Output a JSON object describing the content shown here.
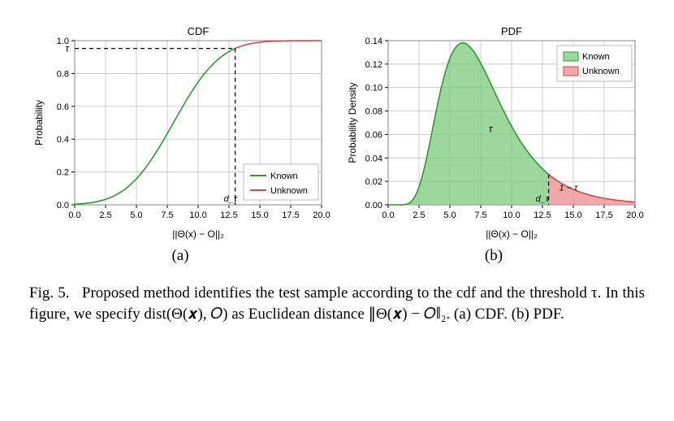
{
  "figure_number": "Fig. 5.",
  "caption_text": "Proposed method identifies the test sample according to the cdf and the threshold τ. In this figure, we specify dist(Θ(𝒙), 𝑂) as Euclidean distance ∥Θ(𝒙) − 𝑂∥₂. (a) CDF. (b) PDF.",
  "sublabel_a": "(a)",
  "sublabel_b": "(b)",
  "colors": {
    "known": "#2e9b2e",
    "unknown": "#d84545",
    "known_fill": "#7bc97b",
    "unknown_fill": "#e98c8c",
    "grid": "#b8b8b8",
    "axis": "#000000",
    "bg": "#ffffff",
    "text": "#000000"
  },
  "cdf": {
    "title": "CDF",
    "xlabel": "||Θ(x) − O||₂",
    "ylabel": "Probability",
    "xlim": [
      0,
      20
    ],
    "ylim": [
      0,
      1.0
    ],
    "xticks": [
      0.0,
      2.5,
      5.0,
      7.5,
      10.0,
      12.5,
      15.0,
      17.5,
      20.0
    ],
    "yticks": [
      0.0,
      0.2,
      0.4,
      0.6,
      0.8,
      1.0
    ],
    "tau_label": "τ",
    "dtau_label": "d_τ",
    "threshold_x": 13.0,
    "threshold_y": 0.91,
    "legend": [
      "Known",
      "Unknown"
    ],
    "mu": 8.0,
    "sigma": 3.0,
    "line_width": 1.6,
    "fontsize_title": 13,
    "fontsize_label": 12,
    "fontsize_tick": 11
  },
  "pdf": {
    "title": "PDF",
    "xlabel": "||Θ(x) − O||₂",
    "ylabel": "Probability Density",
    "xlim": [
      0,
      20
    ],
    "ylim": [
      0,
      0.14
    ],
    "xticks": [
      0.0,
      2.5,
      5.0,
      7.5,
      10.0,
      12.5,
      15.0,
      17.5,
      20.0
    ],
    "yticks": [
      0.0,
      0.02,
      0.04,
      0.06,
      0.08,
      0.1,
      0.12,
      0.14
    ],
    "tau_label": "τ",
    "one_minus_tau_label": "1 − τ",
    "dtau_label": "d_τ",
    "threshold_x": 13.0,
    "legend": [
      "Known",
      "Unknown"
    ],
    "mu": 8.0,
    "sigma": 3.0,
    "line_width": 1.6,
    "fontsize_title": 13,
    "fontsize_label": 12,
    "fontsize_tick": 11
  }
}
